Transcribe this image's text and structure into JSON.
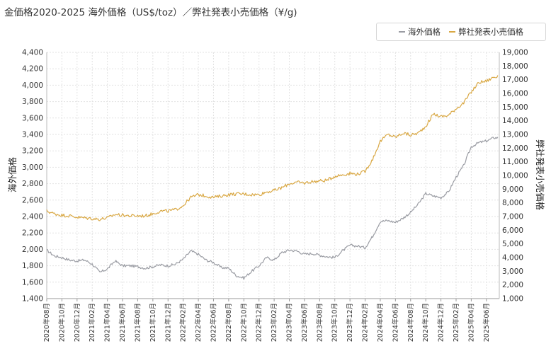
{
  "chart_data": {
    "type": "line",
    "title": "金価格2020-2025 海外価格（US$/toz）／弊社発表小売価格（¥/g)",
    "y_left_label": "海外価格",
    "y_right_label": "弊社発表小売価格",
    "y_left_lim": [
      1400,
      4400
    ],
    "y_right_lim": [
      1000,
      19000
    ],
    "y_left_ticks": [
      "1,400",
      "1,600",
      "1,800",
      "2,000",
      "2,200",
      "2,400",
      "2,600",
      "2,800",
      "3,000",
      "3,200",
      "3,400",
      "3,600",
      "3,800",
      "4,000",
      "4,200",
      "4,400"
    ],
    "y_right_ticks": [
      "1,000",
      "2,000",
      "3,000",
      "4,000",
      "5,000",
      "6,000",
      "7,000",
      "8,000",
      "9,000",
      "10,000",
      "11,000",
      "12,000",
      "13,000",
      "14,000",
      "15,000",
      "16,000",
      "17,000",
      "18,000",
      "19,000"
    ],
    "x_tick_labels": [
      "2020年08月",
      "2020年10月",
      "2020年12月",
      "2021年02月",
      "2021年04月",
      "2021年06月",
      "2021年08月",
      "2021年10月",
      "2021年12月",
      "2022年02月",
      "2022年04月",
      "2022年06月",
      "2022年08月",
      "2022年10月",
      "2022年12月",
      "2023年02月",
      "2023年04月",
      "2023年06月",
      "2023年08月",
      "2023年10月",
      "2023年12月",
      "2024年02月",
      "2024年04月",
      "2024年06月",
      "2024年08月",
      "2024年10月",
      "2024年12月",
      "2025年02月",
      "2025年04月",
      "2025年06月"
    ],
    "grid": true,
    "legend_position": "top-right",
    "series": [
      {
        "name": "海外価格",
        "axis": "left",
        "color": "#9a9ca3",
        "x": [
          "2020-08",
          "2020-09",
          "2020-10",
          "2020-11",
          "2020-12",
          "2021-01",
          "2021-02",
          "2021-03",
          "2021-04",
          "2021-05",
          "2021-06",
          "2021-07",
          "2021-08",
          "2021-09",
          "2021-10",
          "2021-11",
          "2021-12",
          "2022-01",
          "2022-02",
          "2022-03",
          "2022-04",
          "2022-05",
          "2022-06",
          "2022-07",
          "2022-08",
          "2022-09",
          "2022-10",
          "2022-11",
          "2022-12",
          "2023-01",
          "2023-02",
          "2023-03",
          "2023-04",
          "2023-05",
          "2023-06",
          "2023-07",
          "2023-08",
          "2023-09",
          "2023-10",
          "2023-11",
          "2023-12",
          "2024-01",
          "2024-02",
          "2024-03",
          "2024-04",
          "2024-05",
          "2024-06",
          "2024-07",
          "2024-08",
          "2024-09",
          "2024-10",
          "2024-11",
          "2024-12",
          "2025-01",
          "2025-02",
          "2025-03",
          "2025-04",
          "2025-05",
          "2025-06",
          "2025-07"
        ],
        "values": [
          1990,
          1920,
          1900,
          1870,
          1860,
          1870,
          1820,
          1720,
          1760,
          1860,
          1800,
          1800,
          1790,
          1770,
          1790,
          1810,
          1800,
          1820,
          1880,
          1980,
          1940,
          1870,
          1840,
          1780,
          1770,
          1680,
          1650,
          1730,
          1800,
          1900,
          1870,
          1960,
          1990,
          1980,
          1940,
          1950,
          1930,
          1910,
          1900,
          1980,
          2050,
          2040,
          2020,
          2160,
          2340,
          2350,
          2330,
          2380,
          2450,
          2550,
          2680,
          2650,
          2630,
          2700,
          2880,
          3020,
          3250,
          3300,
          3320,
          3360
        ]
      },
      {
        "name": "弊社発表小売価格",
        "axis": "right",
        "color": "#d9a844",
        "x": [
          "2020-08",
          "2020-09",
          "2020-10",
          "2020-11",
          "2020-12",
          "2021-01",
          "2021-02",
          "2021-03",
          "2021-04",
          "2021-05",
          "2021-06",
          "2021-07",
          "2021-08",
          "2021-09",
          "2021-10",
          "2021-11",
          "2021-12",
          "2022-01",
          "2022-02",
          "2022-03",
          "2022-04",
          "2022-05",
          "2022-06",
          "2022-07",
          "2022-08",
          "2022-09",
          "2022-10",
          "2022-11",
          "2022-12",
          "2023-01",
          "2023-02",
          "2023-03",
          "2023-04",
          "2023-05",
          "2023-06",
          "2023-07",
          "2023-08",
          "2023-09",
          "2023-10",
          "2023-11",
          "2023-12",
          "2024-01",
          "2024-02",
          "2024-03",
          "2024-04",
          "2024-05",
          "2024-06",
          "2024-07",
          "2024-08",
          "2024-09",
          "2024-10",
          "2024-11",
          "2024-12",
          "2025-01",
          "2025-02",
          "2025-03",
          "2025-04",
          "2025-05",
          "2025-06",
          "2025-07"
        ],
        "values": [
          7400,
          7200,
          7100,
          7050,
          6950,
          6900,
          6850,
          6800,
          6900,
          7150,
          7100,
          7050,
          7050,
          7050,
          7200,
          7400,
          7400,
          7500,
          7800,
          8400,
          8600,
          8500,
          8400,
          8500,
          8600,
          8650,
          8650,
          8600,
          8600,
          8800,
          8900,
          9100,
          9400,
          9500,
          9450,
          9550,
          9600,
          9650,
          9950,
          10050,
          10150,
          10100,
          10300,
          11200,
          12500,
          13000,
          12800,
          13100,
          12950,
          13100,
          13600,
          14500,
          14300,
          14400,
          14900,
          15300,
          16100,
          16800,
          16900,
          17200
        ]
      }
    ]
  }
}
